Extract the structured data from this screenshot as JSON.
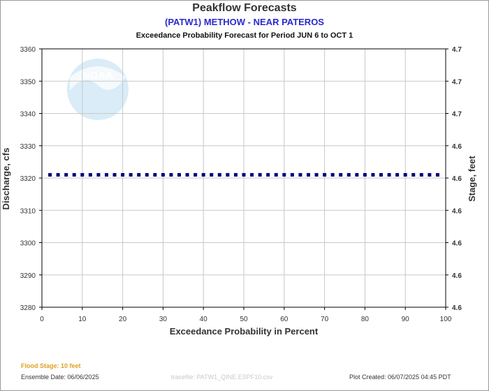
{
  "header": {
    "title": "Peakflow Forecasts",
    "station": "(PATW1) METHOW - NEAR PATEROS",
    "period": "Exceedance Probability Forecast for Period JUN 6 to OCT 1"
  },
  "logo": {
    "text": "NOAA",
    "color": "#d9ecf7"
  },
  "chart_data": {
    "type": "scatter",
    "xlabel": "Exceedance Probability in Percent",
    "ylabel": "Discharge, cfs",
    "y2label": "Stage, feet",
    "xlim": [
      0,
      100
    ],
    "ylim": [
      3280,
      3360
    ],
    "xticks": [
      "0",
      "10",
      "20",
      "30",
      "40",
      "50",
      "60",
      "70",
      "80",
      "90",
      "100"
    ],
    "yticks": [
      "3280",
      "3290",
      "3300",
      "3310",
      "3320",
      "3330",
      "3340",
      "3350",
      "3360"
    ],
    "y2ticks": [
      "4.6",
      "4.6",
      "4.6",
      "4.6",
      "4.6",
      "4.6",
      "4.7",
      "4.7",
      "4.7"
    ],
    "grid": true,
    "series": [
      {
        "color": "#00007a",
        "x": [
          2,
          4,
          6,
          8,
          10,
          12,
          14,
          16,
          18,
          20,
          22,
          24,
          26,
          28,
          30,
          32,
          34,
          36,
          38,
          40,
          42,
          44,
          46,
          48,
          50,
          52,
          54,
          56,
          58,
          60,
          62,
          64,
          66,
          68,
          70,
          72,
          74,
          76,
          78,
          80,
          82,
          84,
          86,
          88,
          90,
          92,
          94,
          96,
          98
        ],
        "y": [
          3321,
          3321,
          3321,
          3321,
          3321,
          3321,
          3321,
          3321,
          3321,
          3321,
          3321,
          3321,
          3321,
          3321,
          3321,
          3321,
          3321,
          3321,
          3321,
          3321,
          3321,
          3321,
          3321,
          3321,
          3321,
          3321,
          3321,
          3321,
          3321,
          3321,
          3321,
          3321,
          3321,
          3321,
          3321,
          3321,
          3321,
          3321,
          3321,
          3321,
          3321,
          3321,
          3321,
          3321,
          3321,
          3321,
          3321,
          3321,
          3321
        ]
      }
    ]
  },
  "footer": {
    "flood_stage": "Flood Stage: 10 feet",
    "ensemble_date": "Ensemble Date: 06/06/2025",
    "tracefile": "tracefile: PATW1_QINE.ESPF10.csv",
    "plot_created": "Plot Created: 06/07/2025 04:45 PDT"
  }
}
